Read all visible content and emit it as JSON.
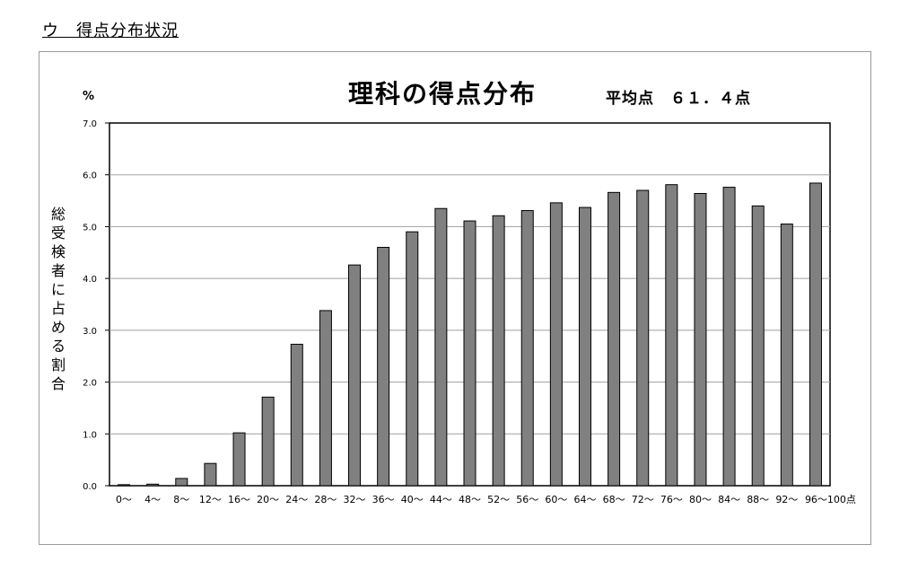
{
  "section_heading": "ウ　得点分布状況",
  "chart_data": {
    "type": "bar",
    "title": "理科の得点分布",
    "subtitle": "平均点　６１．４点",
    "y_unit": "%",
    "ylabel": "総受検者に占める割合",
    "xlabel": "",
    "ylim": [
      0,
      7
    ],
    "yticks": [
      "0.0",
      "1.0",
      "2.0",
      "3.0",
      "4.0",
      "5.0",
      "6.0",
      "7.0"
    ],
    "grid": true,
    "categories": [
      "0～",
      "4～",
      "8～",
      "12～",
      "16～",
      "20～",
      "24～",
      "28～",
      "32～",
      "36～",
      "40～",
      "44～",
      "48～",
      "52～",
      "56～",
      "60～",
      "64～",
      "68～",
      "72～",
      "76～",
      "80～",
      "84～",
      "88～",
      "92～",
      "96～100点"
    ],
    "values": [
      0.02,
      0.03,
      0.14,
      0.43,
      1.02,
      1.71,
      2.73,
      3.38,
      4.26,
      4.6,
      4.9,
      5.35,
      5.11,
      5.21,
      5.31,
      5.46,
      5.37,
      5.66,
      5.7,
      5.81,
      5.64,
      5.76,
      5.4,
      5.05,
      5.84
    ],
    "colors": {
      "bar": "#808080",
      "bar_stroke": "#000000",
      "grid": "#a0a0a0"
    }
  }
}
